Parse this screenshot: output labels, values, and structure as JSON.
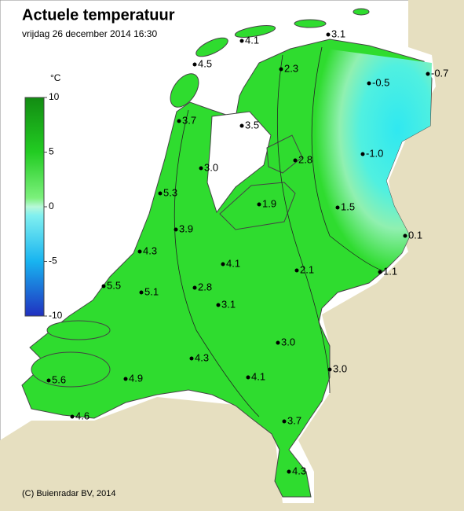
{
  "header": {
    "title": "Actuele temperatuur",
    "subtitle": "vrijdag 26 december 2014 16:30"
  },
  "legend": {
    "unit": "°C",
    "lim": [
      -10,
      10
    ],
    "ticks": [
      10,
      5,
      0,
      -5,
      -10
    ]
  },
  "stations": {
    "values": [
      4.1,
      3.1,
      4.5,
      2.3,
      -0.5,
      -0.7,
      3.7,
      3.5,
      2.8,
      -1,
      3,
      5.3,
      1.9,
      1.5,
      3.9,
      0.1,
      4.3,
      4.1,
      2.1,
      1.1,
      5.5,
      5.1,
      2.8,
      3.1,
      3,
      4.3,
      3,
      4.1,
      5.6,
      4.9,
      4.6,
      3.7,
      4.3
    ],
    "value_labels": [
      "4.1",
      "3.1",
      "4.5",
      "2.3",
      "-0.5",
      "-0.7",
      "3.7",
      "3.5",
      "2.8",
      "-1.0",
      "3.0",
      "5.3",
      "1.9",
      "1.5",
      "3.9",
      "0.1",
      "4.3",
      "4.1",
      "2.1",
      "1.1",
      "5.5",
      "5.1",
      "2.8",
      "3.1",
      "3.0",
      "4.3",
      "3.0",
      "4.1",
      "5.6",
      "4.9",
      "4.6",
      "3.7",
      "4.3"
    ]
  },
  "footer": {
    "copyright": "(C) Buienradar BV, 2014"
  }
}
